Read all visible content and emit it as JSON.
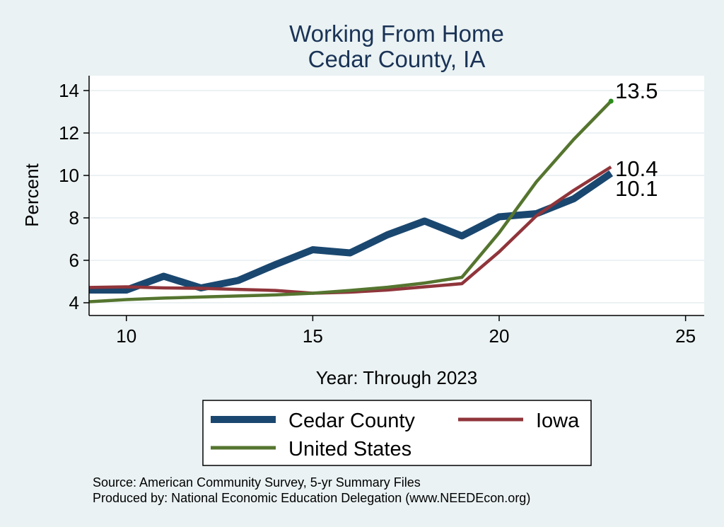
{
  "chart_data": {
    "type": "line",
    "title": [
      "Working From Home",
      "Cedar County, IA"
    ],
    "xlabel": "Year: Through 2023",
    "ylabel": "Percent",
    "xlim": [
      9,
      25.5
    ],
    "ylim": [
      3.4,
      14.7
    ],
    "xticks": [
      10,
      15,
      20,
      25
    ],
    "yticks": [
      4,
      6,
      8,
      10,
      12,
      14
    ],
    "grid": true,
    "legend_position": "bottom",
    "series": [
      {
        "name": "Cedar County",
        "color": "#1a476f",
        "x": [
          9,
          10,
          11,
          12,
          13,
          14,
          15,
          16,
          17,
          18,
          19,
          20,
          21,
          22,
          23
        ],
        "values": [
          4.6,
          4.6,
          5.25,
          4.7,
          5.05,
          5.8,
          6.5,
          6.35,
          7.2,
          7.85,
          7.15,
          8.05,
          8.2,
          8.9,
          10.1
        ],
        "end_label": "10.1"
      },
      {
        "name": "Iowa",
        "color": "#90353b",
        "x": [
          9,
          10,
          11,
          12,
          13,
          14,
          15,
          16,
          17,
          18,
          19,
          20,
          21,
          22,
          23
        ],
        "values": [
          4.72,
          4.75,
          4.7,
          4.68,
          4.63,
          4.58,
          4.45,
          4.5,
          4.6,
          4.75,
          4.9,
          6.4,
          8.1,
          9.3,
          10.4
        ],
        "end_label": "10.4"
      },
      {
        "name": "United States",
        "color": "#55752f",
        "x": [
          9,
          10,
          11,
          12,
          13,
          14,
          15,
          16,
          17,
          18,
          19,
          20,
          21,
          22,
          23
        ],
        "values": [
          4.05,
          4.15,
          4.22,
          4.27,
          4.32,
          4.37,
          4.45,
          4.58,
          4.73,
          4.93,
          5.2,
          7.3,
          9.7,
          11.7,
          13.5
        ],
        "end_label": "13.5"
      }
    ],
    "notes": [
      "Source: American Community Survey, 5-yr Summary Files",
      "Produced by: National Economic Education Delegation (www.NEEDEcon.org)"
    ]
  }
}
